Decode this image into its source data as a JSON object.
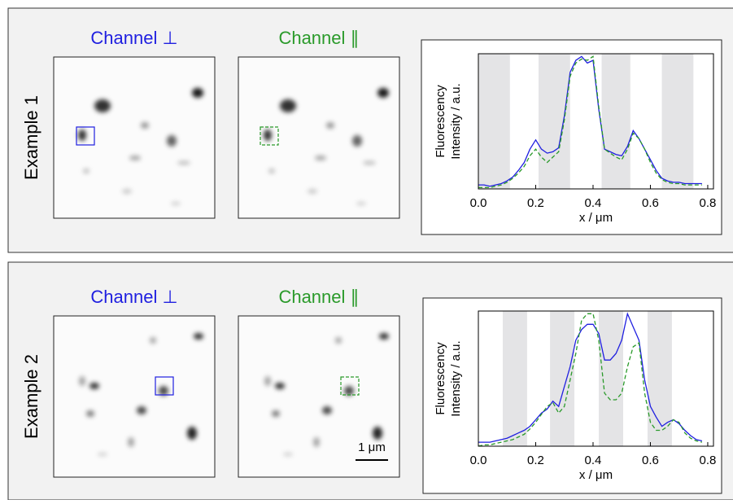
{
  "panels": [
    {
      "label": "Example 1",
      "channels": [
        "Channel ⊥",
        "Channel ∥"
      ]
    },
    {
      "label": "Example 2",
      "channels": [
        "Channel ⊥",
        "Channel ∥"
      ]
    }
  ],
  "scale_bar": "1 μm",
  "chart_data": [
    {
      "type": "line",
      "x": [
        0,
        0.02,
        0.04,
        0.06,
        0.08,
        0.1,
        0.12,
        0.14,
        0.16,
        0.18,
        0.2,
        0.22,
        0.24,
        0.26,
        0.28,
        0.3,
        0.32,
        0.34,
        0.36,
        0.38,
        0.4,
        0.42,
        0.44,
        0.46,
        0.48,
        0.5,
        0.52,
        0.54,
        0.56,
        0.58,
        0.6,
        0.62,
        0.64,
        0.66,
        0.68,
        0.7,
        0.72,
        0.74,
        0.76,
        0.78
      ],
      "series": [
        {
          "color": "#1f1fe0",
          "dashed": false,
          "values": [
            0.03,
            0.03,
            0.02,
            0.03,
            0.04,
            0.06,
            0.09,
            0.14,
            0.2,
            0.3,
            0.37,
            0.3,
            0.27,
            0.28,
            0.31,
            0.55,
            0.88,
            0.97,
            1.0,
            0.95,
            0.97,
            0.6,
            0.3,
            0.28,
            0.26,
            0.25,
            0.32,
            0.44,
            0.38,
            0.3,
            0.22,
            0.14,
            0.08,
            0.06,
            0.05,
            0.05,
            0.04,
            0.04,
            0.04,
            0.04
          ]
        },
        {
          "color": "#2a9a2a",
          "dashed": true,
          "values": [
            0.01,
            0.01,
            0.01,
            0.02,
            0.03,
            0.05,
            0.08,
            0.12,
            0.17,
            0.25,
            0.3,
            0.24,
            0.2,
            0.24,
            0.28,
            0.52,
            0.85,
            0.95,
            0.98,
            0.97,
            1.0,
            0.62,
            0.3,
            0.27,
            0.24,
            0.22,
            0.3,
            0.42,
            0.38,
            0.3,
            0.2,
            0.12,
            0.07,
            0.05,
            0.04,
            0.04,
            0.03,
            0.03,
            0.03,
            0.03
          ]
        }
      ],
      "bands": [
        [
          0,
          0.11
        ],
        [
          0.21,
          0.32
        ],
        [
          0.43,
          0.53
        ],
        [
          0.64,
          0.75
        ]
      ],
      "band_color": "#e4e4e6",
      "xlim": [
        0,
        0.82
      ],
      "xticks": [
        {
          "value": 0,
          "label": "0.0"
        },
        0.2,
        0.4,
        0.6,
        0.8
      ],
      "ylim": [
        0,
        1.02
      ],
      "xlabel": "x / μm",
      "ylabel": [
        "Fluorescency",
        "Intensity / a.u."
      ]
    },
    {
      "type": "line",
      "x": [
        0,
        0.02,
        0.04,
        0.06,
        0.08,
        0.1,
        0.12,
        0.14,
        0.16,
        0.18,
        0.2,
        0.22,
        0.24,
        0.26,
        0.28,
        0.3,
        0.32,
        0.34,
        0.36,
        0.38,
        0.4,
        0.42,
        0.44,
        0.46,
        0.48,
        0.5,
        0.52,
        0.54,
        0.56,
        0.58,
        0.6,
        0.62,
        0.64,
        0.66,
        0.68,
        0.7,
        0.72,
        0.74,
        0.76,
        0.78
      ],
      "series": [
        {
          "color": "#1f1fe0",
          "dashed": false,
          "values": [
            0.03,
            0.03,
            0.03,
            0.04,
            0.05,
            0.06,
            0.08,
            0.1,
            0.12,
            0.15,
            0.2,
            0.25,
            0.28,
            0.34,
            0.3,
            0.45,
            0.6,
            0.8,
            0.88,
            0.92,
            0.92,
            0.85,
            0.65,
            0.65,
            0.7,
            0.8,
            1.0,
            0.9,
            0.8,
            0.5,
            0.3,
            0.22,
            0.15,
            0.18,
            0.2,
            0.17,
            0.12,
            0.08,
            0.05,
            0.04
          ]
        },
        {
          "color": "#2a9a2a",
          "dashed": true,
          "values": [
            0.0,
            0.01,
            0.01,
            0.02,
            0.03,
            0.04,
            0.05,
            0.07,
            0.09,
            0.13,
            0.18,
            0.24,
            0.3,
            0.33,
            0.25,
            0.3,
            0.5,
            0.7,
            0.95,
            1.0,
            1.0,
            0.8,
            0.4,
            0.35,
            0.35,
            0.4,
            0.6,
            0.75,
            0.78,
            0.4,
            0.18,
            0.12,
            0.12,
            0.15,
            0.2,
            0.18,
            0.1,
            0.06,
            0.04,
            0.03
          ]
        }
      ],
      "bands": [
        [
          0.085,
          0.17
        ],
        [
          0.25,
          0.335
        ],
        [
          0.42,
          0.505
        ],
        [
          0.59,
          0.675
        ]
      ],
      "band_color": "#e4e4e6",
      "xlim": [
        0,
        0.82
      ],
      "xticks": [
        {
          "value": 0,
          "label": "0.0"
        },
        0.2,
        0.4,
        0.6,
        0.8
      ],
      "ylim": [
        0,
        1.02
      ],
      "xlabel": "x / μm",
      "ylabel": [
        "Fluorescency",
        "Intensity / a.u."
      ]
    }
  ]
}
